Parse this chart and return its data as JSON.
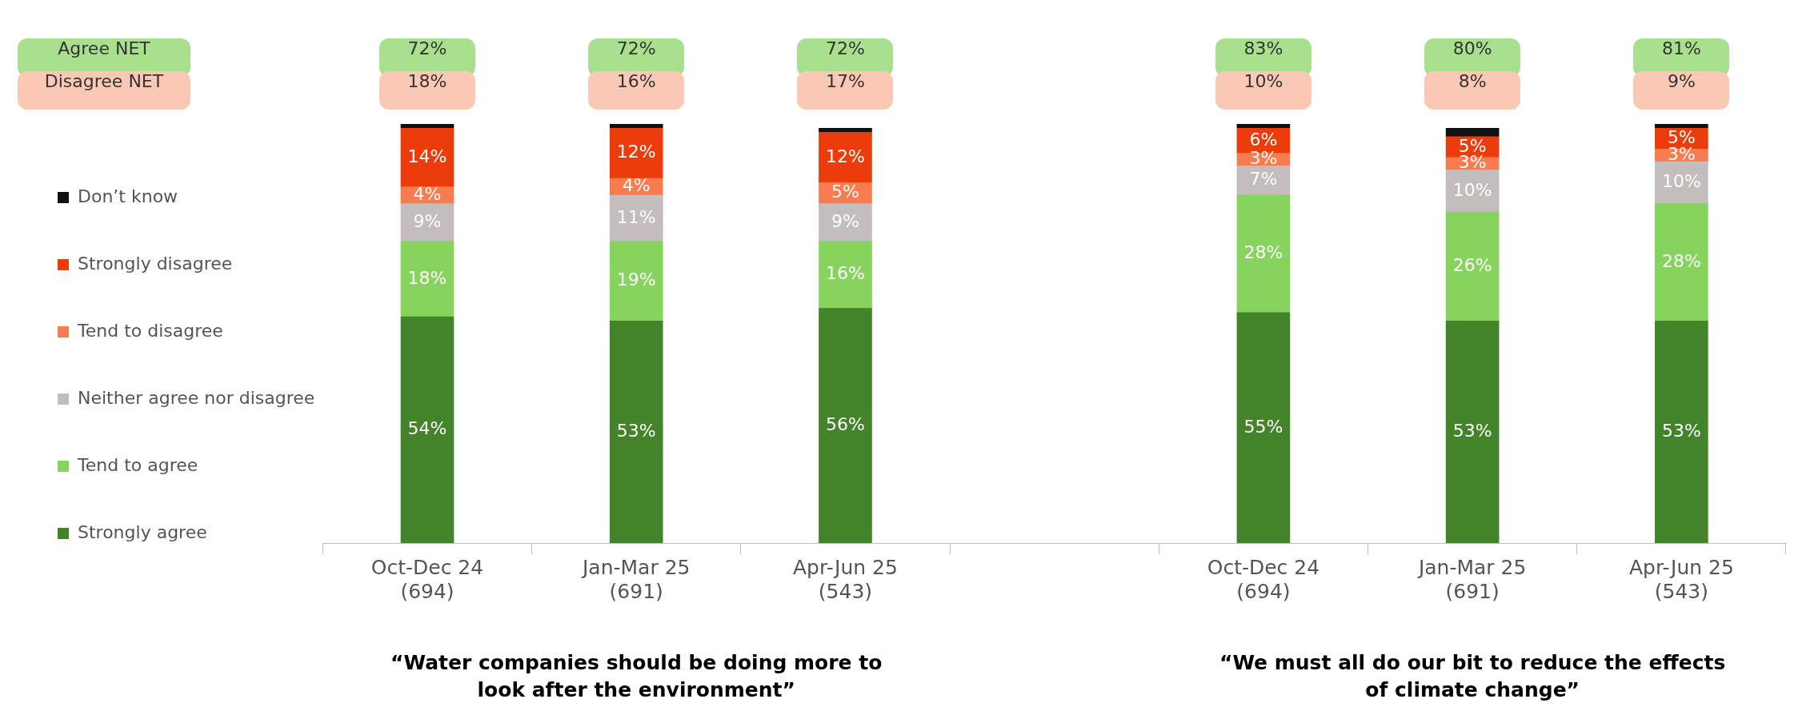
{
  "chart_data": {
    "type": "bar",
    "stacked": true,
    "legend": "left",
    "tick_labels": "x",
    "categories": [
      "Oct-Dec 24\n(694)",
      "Jan-Mar 25\n(691)",
      "Apr-Jun 25\n(543)",
      null,
      "Oct-Dec 24\n(694)",
      "Jan-Mar 25\n(691)",
      "Apr-Jun 25\n(543)"
    ],
    "series": [
      {
        "name": "Strongly agree",
        "color": "#43832a",
        "values": [
          54,
          53,
          56,
          null,
          55,
          53,
          53
        ],
        "value_labels": [
          "54%",
          "53%",
          "56%",
          null,
          "55%",
          "53%",
          "53%"
        ]
      },
      {
        "name": "Tend to agree",
        "color": "#86d45e",
        "values": [
          18,
          19,
          16,
          null,
          28,
          26,
          28
        ],
        "value_labels": [
          "18%",
          "19%",
          "16%",
          null,
          "28%",
          "26%",
          "28%"
        ]
      },
      {
        "name": "Neither agree nor disagree",
        "color": "#c3bdbd",
        "values": [
          9,
          11,
          9,
          null,
          7,
          10,
          10
        ],
        "value_labels": [
          "9%",
          "11%",
          "9%",
          null,
          "7%",
          "10%",
          "10%"
        ]
      },
      {
        "name": "Tend to disagree",
        "color": "#f97b50",
        "values": [
          4,
          4,
          5,
          null,
          3,
          3,
          3
        ],
        "value_labels": [
          "4%",
          "4%",
          "5%",
          null,
          "3%",
          "3%",
          "3%"
        ]
      },
      {
        "name": "Strongly disagree",
        "color": "#ec3c0b",
        "values": [
          14,
          12,
          12,
          null,
          6,
          5,
          5
        ],
        "value_labels": [
          "14%",
          "12%",
          "12%",
          null,
          "6%",
          "5%",
          "5%"
        ]
      },
      {
        "name": "Don’t know",
        "color": "#111111",
        "values": [
          1,
          1,
          1,
          null,
          1,
          2,
          1
        ]
      }
    ],
    "annotations": [
      "Agree NET",
      "Disagree NET",
      "72%",
      "72%",
      "72%",
      "83%",
      "80%",
      "81%",
      "18%",
      "16%",
      "17%",
      "10%",
      "8%",
      "9%",
      "“Water companies should be doing more to look after the environment”",
      "“We must all do our bit to reduce the effects of climate change”"
    ]
  }
}
